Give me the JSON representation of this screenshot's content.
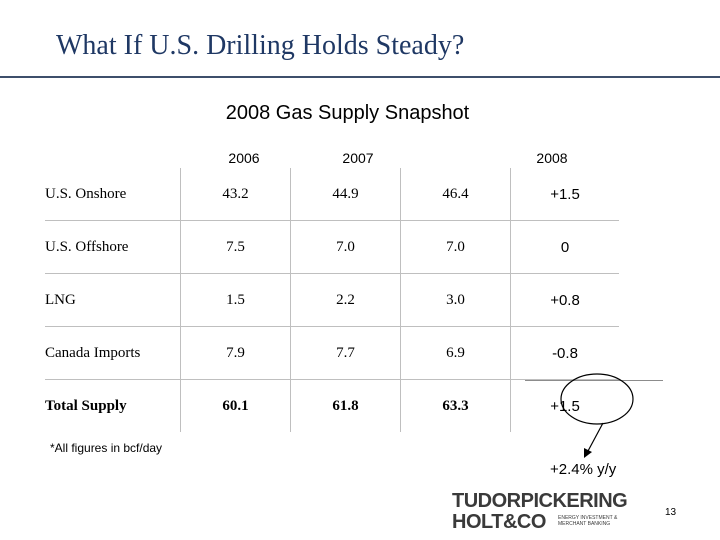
{
  "slide": {
    "title": "What If U.S. Drilling Holds Steady?",
    "subtitle": "2008 Gas Supply Snapshot",
    "columns": [
      "2006",
      "2007",
      "2008"
    ],
    "rows": [
      {
        "label": "U.S. Onshore",
        "v2006": "43.2",
        "v2007": "44.9",
        "v2008": "46.4",
        "change": "+1.5"
      },
      {
        "label": "U.S. Offshore",
        "v2006": "7.5",
        "v2007": "7.0",
        "v2008": "7.0",
        "change": "0"
      },
      {
        "label": "LNG",
        "v2006": "1.5",
        "v2007": "2.2",
        "v2008": "3.0",
        "change": "+0.8"
      },
      {
        "label": "Canada Imports",
        "v2006": "7.9",
        "v2007": "7.7",
        "v2008": "6.9",
        "change": "-0.8"
      },
      {
        "label": "Total Supply",
        "v2006": "60.1",
        "v2007": "61.8",
        "v2008": "63.3",
        "change": "+1.5"
      }
    ],
    "footnote": "*All figures in bcf/day",
    "annotation": "+2.4% y/y",
    "page_number": "13"
  },
  "logo": {
    "line1": "TUDORPICKERING",
    "line2": "HOLT&CO",
    "tagline": "ENERGY INVESTMENT &\nMERCHANT BANKING"
  },
  "colors": {
    "title": "#1f3864",
    "rule": "#3d4f6b",
    "grid": "#bfbfbf"
  }
}
